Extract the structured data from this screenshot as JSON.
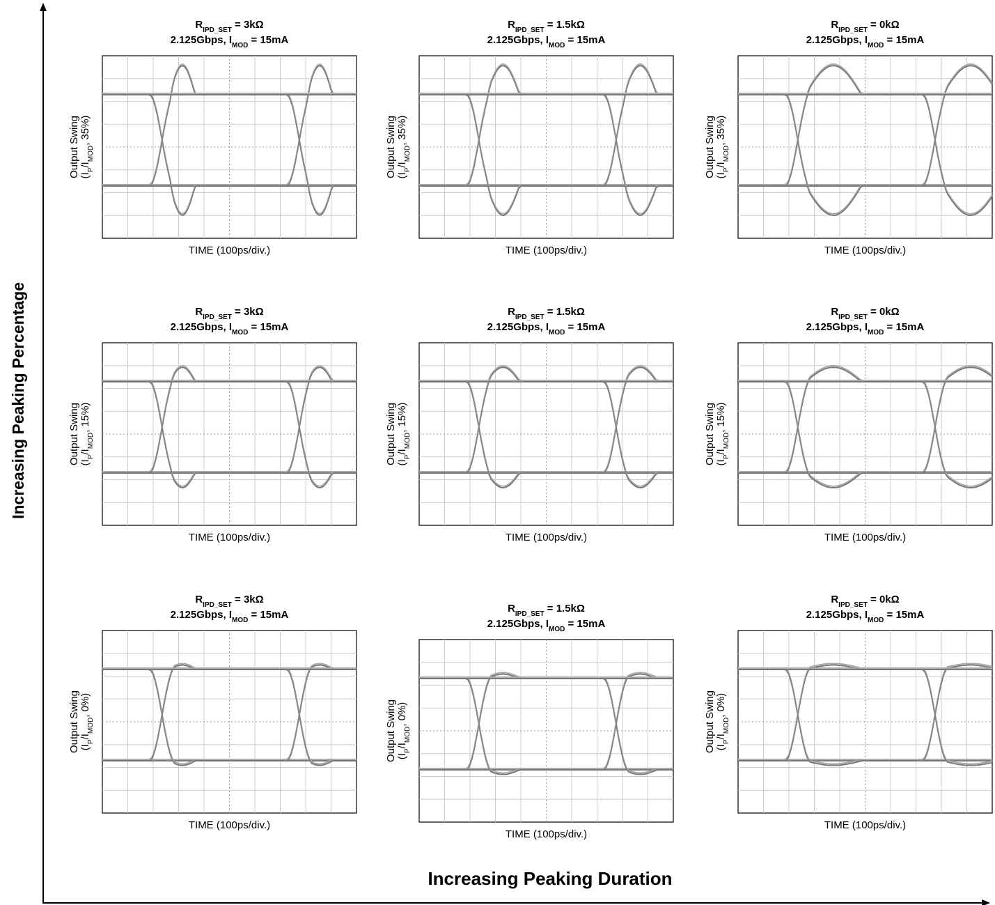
{
  "y_axis_label": "Increasing Peaking Percentage",
  "x_axis_label": "Increasing Peaking Duration",
  "panels": [
    {
      "title1": [
        "R",
        "IPD_SET",
        " = 3kΩ"
      ],
      "title2": [
        "2.125Gbps, I",
        "MOD",
        " = 15mA"
      ],
      "ylabel1": "Output Swing",
      "ylabel2": [
        "(I",
        "P",
        "/I",
        "MOD",
        ", 35%)"
      ],
      "xlabel": "TIME (100ps/div.)"
    },
    {
      "title1": [
        "R",
        "IPD_SET",
        " = 1.5kΩ"
      ],
      "title2": [
        "2.125Gbps, I",
        "MOD",
        " = 15mA"
      ],
      "ylabel1": "Output Swing",
      "ylabel2": [
        "(I",
        "P",
        "/I",
        "MOD",
        ", 35%)"
      ],
      "xlabel": "TIME (100ps/div.)"
    },
    {
      "title1": [
        "R",
        "IPD_SET",
        " = 0kΩ"
      ],
      "title2": [
        "2.125Gbps, I",
        "MOD",
        " = 15mA"
      ],
      "ylabel1": "Output Swing",
      "ylabel2": [
        "(I",
        "P",
        "/I",
        "MOD",
        ", 35%)"
      ],
      "xlabel": "TIME (100ps/div.)"
    },
    {
      "title1": [
        "R",
        "IPD_SET",
        " = 3kΩ"
      ],
      "title2": [
        "2.125Gbps, I",
        "MOD",
        " = 15mA"
      ],
      "ylabel1": "Output Swing",
      "ylabel2": [
        "(I",
        "P",
        "/I",
        "MOD",
        ", 15%)"
      ],
      "xlabel": "TIME (100ps/div.)"
    },
    {
      "title1": [
        "R",
        "IPD_SET",
        " = 1.5kΩ"
      ],
      "title2": [
        "2.125Gbps, I",
        "MOD",
        " = 15mA"
      ],
      "ylabel1": "Output Swing",
      "ylabel2": [
        "(I",
        "P",
        "/I",
        "MOD",
        ", 15%)"
      ],
      "xlabel": "TIME (100ps/div.)"
    },
    {
      "title1": [
        "R",
        "IPD_SET",
        " = 0kΩ"
      ],
      "title2": [
        "2.125Gbps, I",
        "MOD",
        " = 15mA"
      ],
      "ylabel1": "Output Swing",
      "ylabel2": [
        "(I",
        "P",
        "/I",
        "MOD",
        ", 15%)"
      ],
      "xlabel": "TIME (100ps/div.)"
    },
    {
      "title1": [
        "R",
        "IPD_SET",
        " = 3kΩ"
      ],
      "title2": [
        "2.125Gbps, I",
        "MOD",
        " = 15mA"
      ],
      "ylabel1": "Output Swing",
      "ylabel2": [
        "(I",
        "P",
        "/I",
        "MOD",
        ", 0%)"
      ],
      "xlabel": "TIME (100ps/div.)"
    },
    {
      "title1": [
        "R",
        "IPD_SET",
        " = 1.5kΩ"
      ],
      "title2": [
        "2.125Gbps, I",
        "MOD",
        " = 15mA"
      ],
      "ylabel1": "Output Swing",
      "ylabel2": [
        "(I",
        "P",
        "/I",
        "MOD",
        ", 0%)"
      ],
      "xlabel": "TIME (100ps/div.)"
    },
    {
      "title1": [
        "R",
        "IPD_SET",
        " = 0kΩ"
      ],
      "title2": [
        "2.125Gbps, I",
        "MOD",
        " = 15mA"
      ],
      "ylabel1": "Output Swing",
      "ylabel2": [
        "(I",
        "P",
        "/I",
        "MOD",
        ", 0%)"
      ],
      "xlabel": "TIME (100ps/div.)"
    }
  ]
}
